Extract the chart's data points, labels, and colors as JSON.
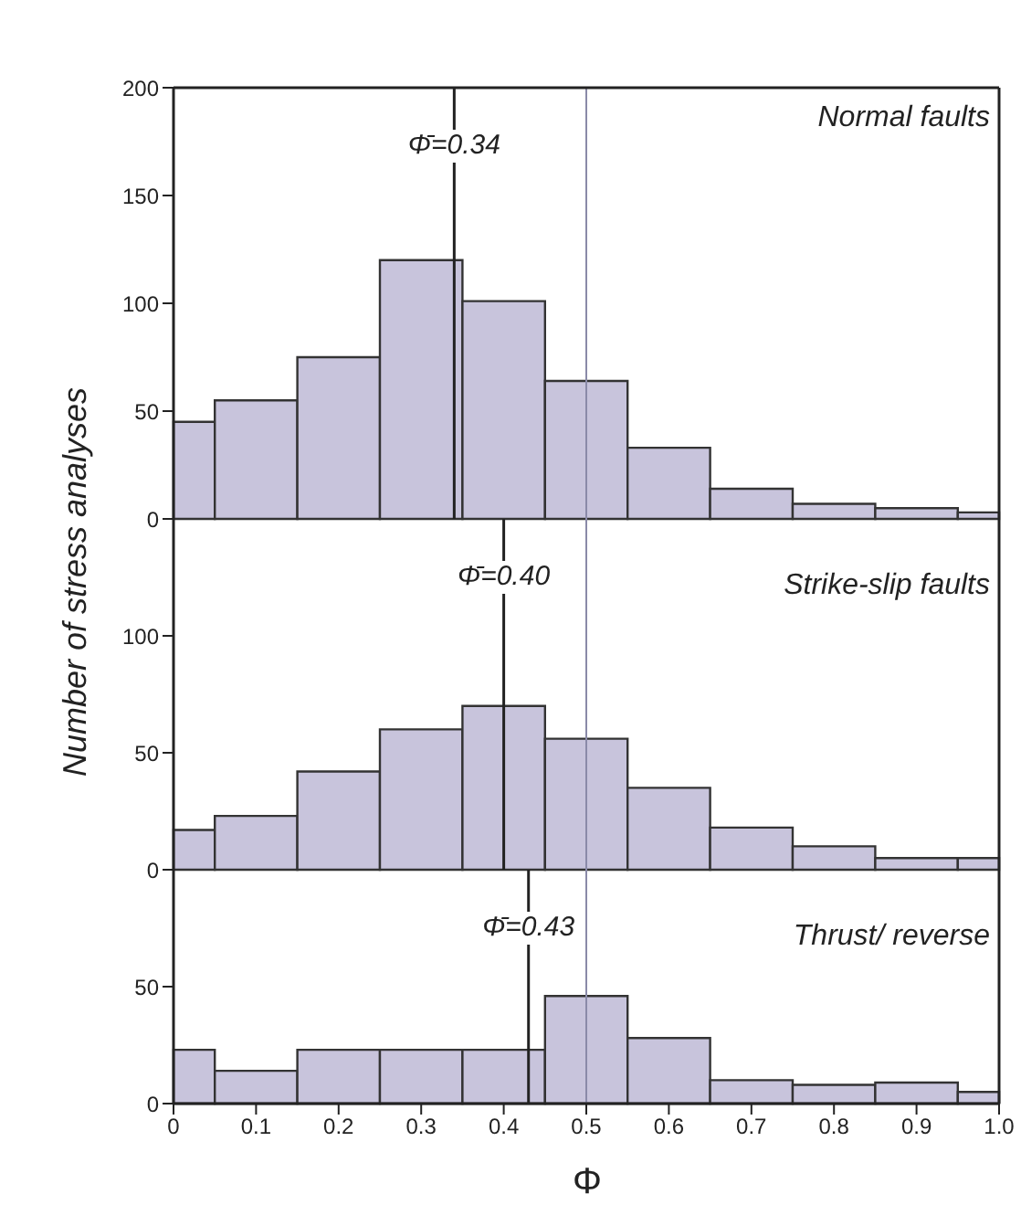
{
  "chart_data": [
    {
      "type": "histogram",
      "title": "Normal faults",
      "ylabel": "Number of stress analyses",
      "bins": [
        0,
        0.05,
        0.15,
        0.25,
        0.35,
        0.45,
        0.55,
        0.65,
        0.75,
        0.85,
        0.95,
        1.0
      ],
      "values": [
        45,
        55,
        75,
        120,
        101,
        64,
        33,
        14,
        7,
        5,
        3
      ],
      "color": "#c8c4dc",
      "xlim": [
        0,
        1
      ],
      "xticks": [
        0,
        0.1,
        0.2,
        0.3,
        0.4,
        0.5,
        0.6,
        0.7,
        0.8,
        0.9,
        1
      ],
      "ylim": [
        0,
        200
      ],
      "yticks": [
        0,
        50,
        100,
        150,
        200
      ],
      "tick_labels": "y",
      "ref_lines": [
        {
          "axis": "x",
          "value": 0.34,
          "label": "Φ̄=0.34",
          "color": "#222222"
        },
        {
          "axis": "x",
          "value": 0.5,
          "label": null,
          "color": "#8a8aa8"
        }
      ]
    },
    {
      "type": "histogram",
      "title": "Strike-slip faults",
      "bins": [
        0,
        0.05,
        0.15,
        0.25,
        0.35,
        0.45,
        0.55,
        0.65,
        0.75,
        0.85,
        0.95,
        1.0
      ],
      "values": [
        17,
        23,
        42,
        60,
        70,
        56,
        35,
        18,
        10,
        5,
        5
      ],
      "color": "#c8c4dc",
      "xlim": [
        0,
        1
      ],
      "ylim": [
        0,
        150
      ],
      "yticks": [
        0,
        50,
        100
      ],
      "tick_labels": "y",
      "ref_lines": [
        {
          "axis": "x",
          "value": 0.4,
          "label": "Φ̄=0.40",
          "color": "#222222"
        },
        {
          "axis": "x",
          "value": 0.5,
          "label": null,
          "color": "#8a8aa8"
        }
      ]
    },
    {
      "type": "histogram",
      "title": "Thrust/ reverse",
      "xlabel": "Φ",
      "bins": [
        0,
        0.05,
        0.15,
        0.25,
        0.35,
        0.45,
        0.55,
        0.65,
        0.75,
        0.85,
        0.95,
        1.0
      ],
      "values": [
        23,
        14,
        23,
        23,
        23,
        46,
        28,
        10,
        8,
        9,
        5
      ],
      "color": "#c8c4dc",
      "xlim": [
        0,
        1
      ],
      "xticks": [
        0,
        0.1,
        0.2,
        0.3,
        0.4,
        0.5,
        0.6,
        0.7,
        0.8,
        0.9,
        {
          "value": 1,
          "label": "1.0"
        }
      ],
      "ylim": [
        0,
        100
      ],
      "yticks": [
        0,
        50
      ],
      "ref_lines": [
        {
          "axis": "x",
          "value": 0.43,
          "label": "Φ̄=0.43",
          "color": "#222222"
        },
        {
          "axis": "x",
          "value": 0.5,
          "label": null,
          "color": "#8a8aa8"
        }
      ]
    }
  ]
}
